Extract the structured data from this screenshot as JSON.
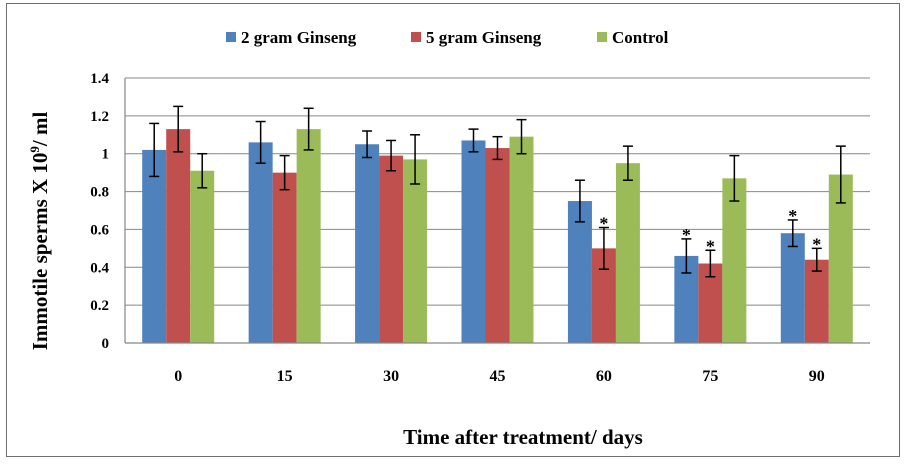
{
  "chart_data": {
    "type": "bar",
    "categories": [
      "0",
      "15",
      "30",
      "45",
      "60",
      "75",
      "90"
    ],
    "series": [
      {
        "name": "2 gram Ginseng",
        "color": "#4F81BD",
        "values": [
          1.02,
          1.06,
          1.05,
          1.07,
          0.75,
          0.46,
          0.58
        ],
        "errors": [
          0.14,
          0.11,
          0.07,
          0.06,
          0.11,
          0.09,
          0.07
        ],
        "significant": [
          false,
          false,
          false,
          false,
          false,
          true,
          true
        ]
      },
      {
        "name": "5 gram Ginseng",
        "color": "#C0504D",
        "values": [
          1.13,
          0.9,
          0.99,
          1.03,
          0.5,
          0.42,
          0.44
        ],
        "errors": [
          0.12,
          0.09,
          0.08,
          0.06,
          0.11,
          0.07,
          0.06
        ],
        "significant": [
          false,
          false,
          false,
          false,
          true,
          true,
          true
        ]
      },
      {
        "name": "Control",
        "color": "#9BBB59",
        "values": [
          0.91,
          1.13,
          0.97,
          1.09,
          0.95,
          0.87,
          0.89
        ],
        "errors": [
          0.09,
          0.11,
          0.13,
          0.09,
          0.09,
          0.12,
          0.15
        ],
        "significant": [
          false,
          false,
          false,
          false,
          false,
          false,
          false
        ]
      }
    ],
    "significance_marker": "*",
    "xlabel": "Time after treatment/ days",
    "ylabel_parts": {
      "main": "Immotile sperms X 10",
      "superscript": "9",
      "suffix": "/ ml"
    },
    "ylim": [
      0,
      1.4
    ],
    "yticks": [
      "0",
      "0.2",
      "0.4",
      "0.6",
      "0.8",
      "1",
      "1.2",
      "1.4"
    ],
    "grid": true,
    "legend_position": "top-center"
  }
}
